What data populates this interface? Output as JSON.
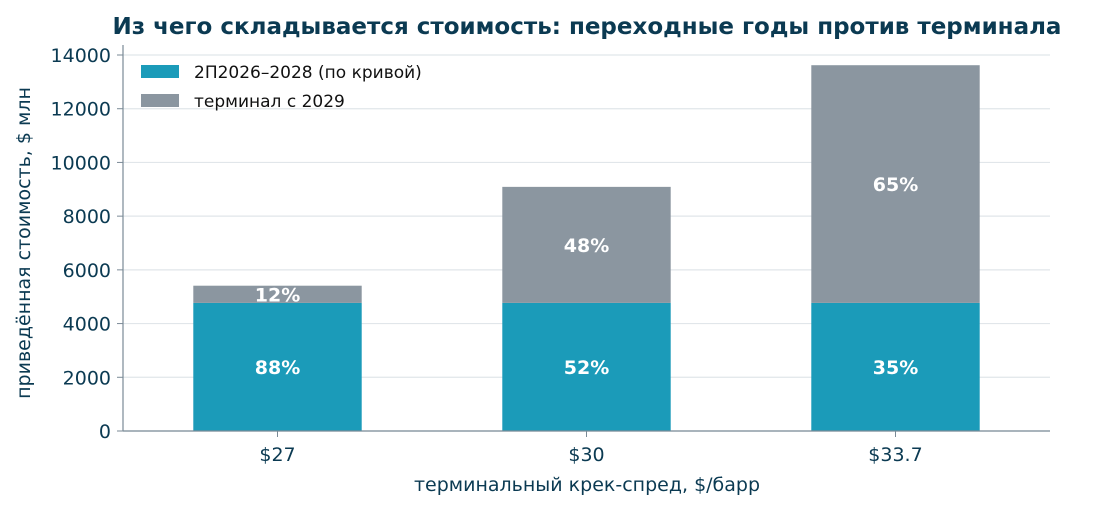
{
  "chart_data": {
    "type": "bar",
    "stacked": true,
    "title": "Из чего складывается стоимость: переходные годы против терминала",
    "xlabel": "терминальный крек-спред, $/барр",
    "ylabel": "приведённая стоимость, $ млн",
    "categories": [
      "$27",
      "$30",
      "$33.7"
    ],
    "ylim": [
      0,
      14000
    ],
    "yticks": [
      0,
      2000,
      4000,
      6000,
      8000,
      10000,
      12000,
      14000
    ],
    "grid": "horizontal",
    "legend_position": "top-left",
    "series": [
      {
        "name": "2П2026–2028 (по кривой)",
        "color": "#1b9bb9",
        "values": [
          4770,
          4770,
          4770
        ],
        "labels": [
          "88%",
          "52%",
          "35%"
        ]
      },
      {
        "name": "терминал с 2029",
        "color": "#8b96a0",
        "values": [
          640,
          4320,
          8850
        ],
        "labels": [
          "12%",
          "48%",
          "65%"
        ]
      }
    ]
  }
}
